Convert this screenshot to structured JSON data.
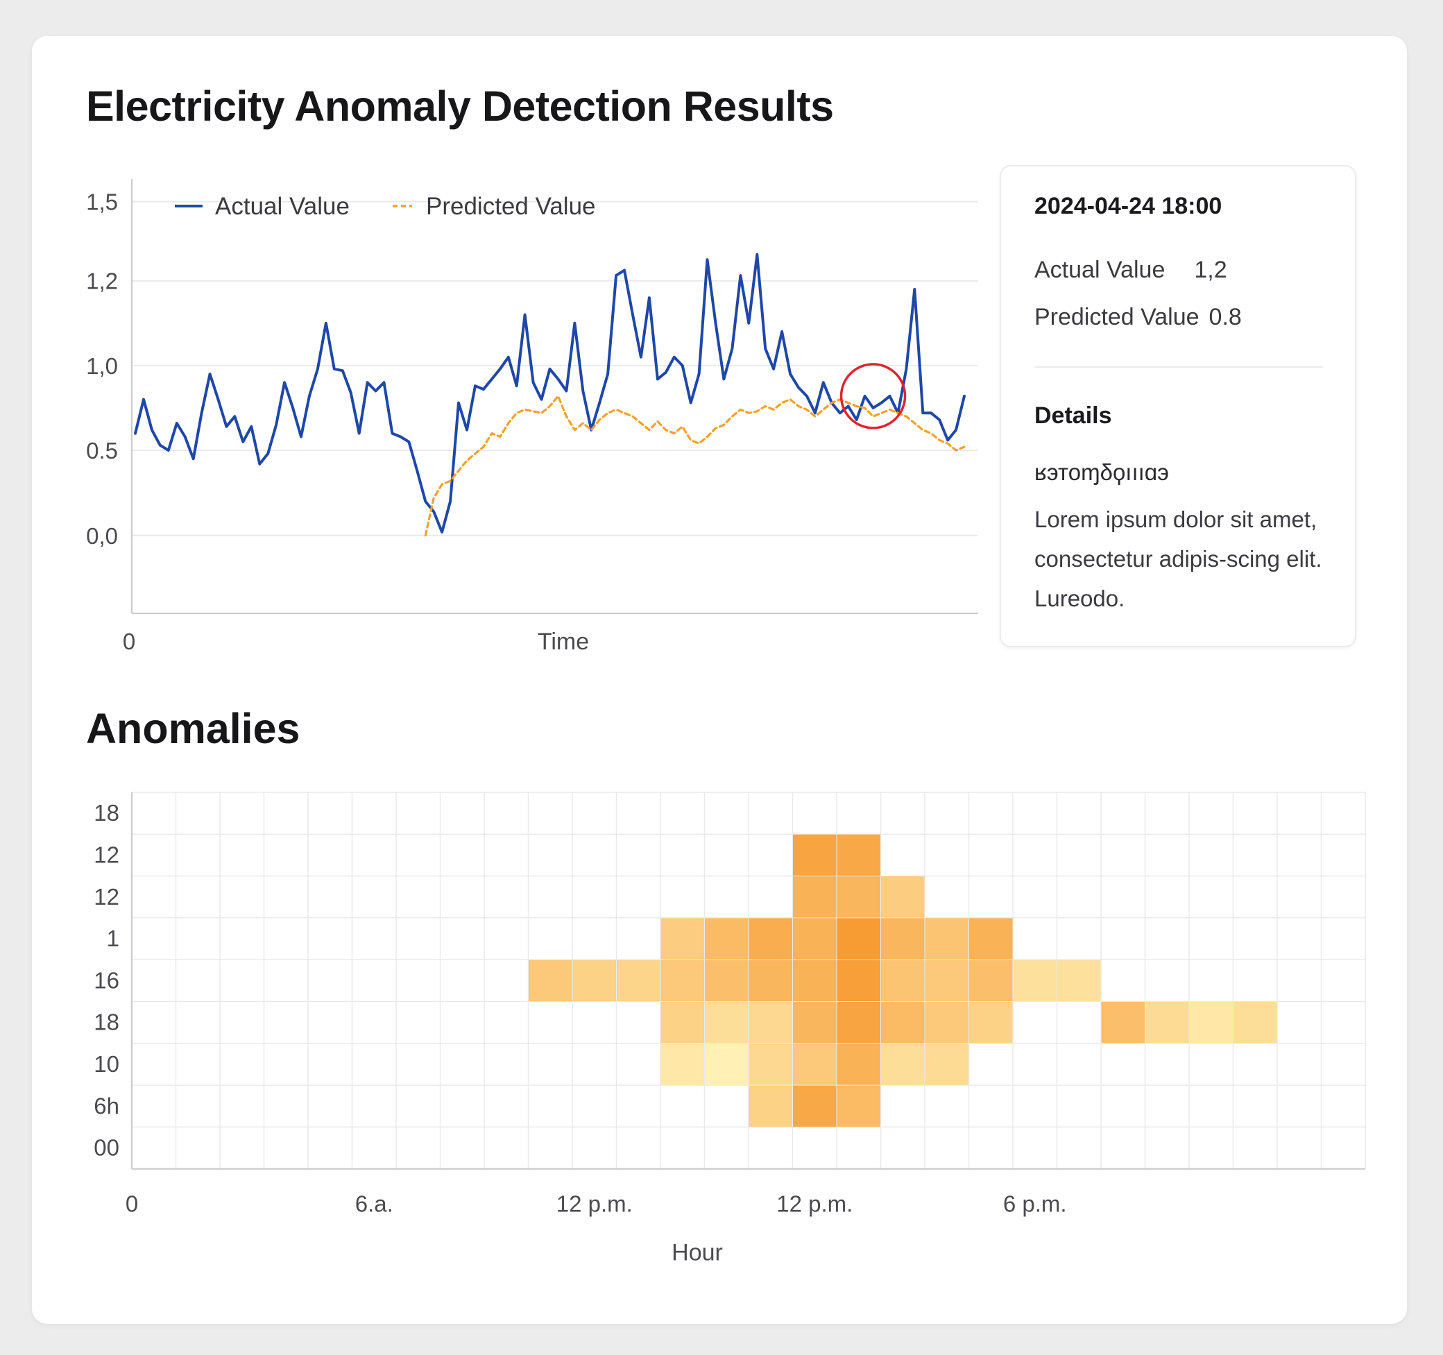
{
  "page": {
    "title": "Electricity Anomaly Detection Results",
    "anomalies_title": "Anomalies"
  },
  "colors": {
    "actual": "#1e47a8",
    "predicted": "#f6a02b",
    "anomaly_marker": "#e0242c",
    "grid": "#eaeaec",
    "axis": "#c9c9cc",
    "heat_low": "#fff2b8",
    "heat_high": "#f7962c"
  },
  "info_panel": {
    "timestamp": "2024-04-24 18:00",
    "actual_label": "Actual Value",
    "actual_value": "1,2",
    "predicted_label": "Predicted Value",
    "predicted_value": "0.8",
    "details_label": "Details",
    "details_code": "ʁэтоɱδϙıııɑэ",
    "details_text": "Lorem ipsum dolor sit amet, consectetur adipis-scing elit. Lureodo."
  },
  "chart_data": [
    {
      "type": "line",
      "title": "Electricity Anomaly Detection Results",
      "xlabel": "Time",
      "ylabel": "",
      "x_tick_labels": [
        "0"
      ],
      "y_ticks": [
        {
          "value": 1.5,
          "label": "1,5"
        },
        {
          "value": 1.2,
          "label": "1,2"
        },
        {
          "value": 1.0,
          "label": "1,0"
        },
        {
          "value": 0.5,
          "label": "0.5"
        },
        {
          "value": 0.0,
          "label": "0,0"
        }
      ],
      "y_positions": [
        {
          "value": -0.5,
          "pos": 0.0
        },
        {
          "value": 0.0,
          "pos": 0.181
        },
        {
          "value": 0.5,
          "pos": 0.379
        },
        {
          "value": 1.0,
          "pos": 0.576
        },
        {
          "value": 1.2,
          "pos": 0.773
        },
        {
          "value": 1.5,
          "pos": 0.957
        }
      ],
      "xlim": [
        0,
        100
      ],
      "legend": {
        "position": "top-left",
        "entries": [
          "Actual Value",
          "Predicted Value"
        ]
      },
      "series": [
        {
          "name": "Actual Value",
          "style": "solid",
          "x": [
            0,
            1,
            2,
            3,
            4,
            5,
            6,
            7,
            8,
            9,
            10,
            11,
            12,
            13,
            14,
            15,
            16,
            17,
            18,
            19,
            20,
            21,
            22,
            23,
            24,
            25,
            26,
            27,
            28,
            29,
            30,
            31,
            32,
            33,
            34,
            35,
            36,
            37,
            38,
            39,
            40,
            41,
            42,
            43,
            44,
            45,
            46,
            47,
            48,
            49,
            50,
            51,
            52,
            53,
            54,
            55,
            56,
            57,
            58,
            59,
            60,
            61,
            62,
            63,
            64,
            65,
            66,
            67,
            68,
            69,
            70,
            71,
            72,
            73,
            74,
            75,
            76,
            77,
            78,
            79,
            80,
            81,
            82,
            83,
            84,
            85,
            86,
            87,
            88,
            89,
            90,
            91,
            92,
            93,
            94,
            95,
            96,
            97,
            98,
            99,
            100
          ],
          "y": [
            0.6,
            0.8,
            0.62,
            0.53,
            0.5,
            0.66,
            0.58,
            0.45,
            0.72,
            0.95,
            0.8,
            0.64,
            0.7,
            0.55,
            0.64,
            0.42,
            0.48,
            0.65,
            0.9,
            0.75,
            0.58,
            0.82,
            0.98,
            1.1,
            0.98,
            0.97,
            0.84,
            0.6,
            0.9,
            0.85,
            0.9,
            0.6,
            0.58,
            0.55,
            0.38,
            0.2,
            0.14,
            0.02,
            0.2,
            0.78,
            0.62,
            0.88,
            0.86,
            0.92,
            0.98,
            1.02,
            0.88,
            1.12,
            0.9,
            0.8,
            0.98,
            0.92,
            0.85,
            1.1,
            0.85,
            0.62,
            0.78,
            0.95,
            1.22,
            1.24,
            1.12,
            1.02,
            1.16,
            0.92,
            0.96,
            1.02,
            1.0,
            0.78,
            0.95,
            1.28,
            1.1,
            0.92,
            1.04,
            1.22,
            1.1,
            1.3,
            1.04,
            0.98,
            1.08,
            0.95,
            0.87,
            0.82,
            0.72,
            0.9,
            0.78,
            0.72,
            0.76,
            0.68,
            0.82,
            0.75,
            0.78,
            0.82,
            0.72,
            0.98,
            1.18,
            0.72,
            0.72,
            0.68,
            0.56,
            0.62,
            0.82
          ]
        },
        {
          "name": "Predicted Value",
          "style": "dashed",
          "x": [
            35,
            36,
            37,
            38,
            39,
            40,
            41,
            42,
            43,
            44,
            45,
            46,
            47,
            48,
            49,
            50,
            51,
            52,
            53,
            54,
            55,
            56,
            57,
            58,
            59,
            60,
            61,
            62,
            63,
            64,
            65,
            66,
            67,
            68,
            69,
            70,
            71,
            72,
            73,
            74,
            75,
            76,
            77,
            78,
            79,
            80,
            81,
            82,
            83,
            84,
            85,
            86,
            87,
            88,
            89,
            90,
            91,
            92,
            93,
            94,
            95,
            96,
            97,
            98,
            99,
            100
          ],
          "y": [
            0.0,
            0.22,
            0.3,
            0.32,
            0.38,
            0.44,
            0.48,
            0.52,
            0.6,
            0.58,
            0.66,
            0.72,
            0.74,
            0.73,
            0.72,
            0.76,
            0.82,
            0.7,
            0.62,
            0.66,
            0.62,
            0.68,
            0.72,
            0.74,
            0.72,
            0.7,
            0.66,
            0.62,
            0.67,
            0.62,
            0.6,
            0.64,
            0.56,
            0.54,
            0.58,
            0.63,
            0.65,
            0.7,
            0.74,
            0.72,
            0.73,
            0.76,
            0.74,
            0.78,
            0.8,
            0.76,
            0.74,
            0.7,
            0.74,
            0.78,
            0.8,
            0.78,
            0.76,
            0.75,
            0.7,
            0.72,
            0.74,
            0.72,
            0.7,
            0.66,
            0.62,
            0.6,
            0.56,
            0.54,
            0.5,
            0.52
          ]
        }
      ],
      "annotations": [
        {
          "type": "anomaly-circle",
          "x": 89,
          "y": 0.82
        }
      ]
    },
    {
      "type": "heatmap",
      "title": "Anomalies",
      "xlabel": "Hour",
      "ylabel": "",
      "x_tick_labels": [
        "0",
        "6.a.",
        "12 p.m.",
        "12 p.m.",
        "6 p.m."
      ],
      "x_tick_columns": [
        0,
        5,
        10,
        15,
        20
      ],
      "y_tick_labels": [
        "18",
        "12",
        "12",
        "1",
        "16",
        "18",
        "10",
        "6h",
        "00"
      ],
      "columns": 28,
      "rows": 9,
      "cells": [
        {
          "col": 15,
          "row": 1,
          "value": 0.85
        },
        {
          "col": 16,
          "row": 1,
          "value": 0.8
        },
        {
          "col": 15,
          "row": 2,
          "value": 0.7
        },
        {
          "col": 16,
          "row": 2,
          "value": 0.65
        },
        {
          "col": 17,
          "row": 2,
          "value": 0.4
        },
        {
          "col": 12,
          "row": 3,
          "value": 0.4
        },
        {
          "col": 13,
          "row": 3,
          "value": 0.6
        },
        {
          "col": 14,
          "row": 3,
          "value": 0.75
        },
        {
          "col": 15,
          "row": 3,
          "value": 0.7
        },
        {
          "col": 16,
          "row": 3,
          "value": 0.95
        },
        {
          "col": 17,
          "row": 3,
          "value": 0.65
        },
        {
          "col": 18,
          "row": 3,
          "value": 0.5
        },
        {
          "col": 19,
          "row": 3,
          "value": 0.7
        },
        {
          "col": 9,
          "row": 4,
          "value": 0.45
        },
        {
          "col": 10,
          "row": 4,
          "value": 0.35
        },
        {
          "col": 11,
          "row": 4,
          "value": 0.32
        },
        {
          "col": 12,
          "row": 4,
          "value": 0.45
        },
        {
          "col": 13,
          "row": 4,
          "value": 0.55
        },
        {
          "col": 14,
          "row": 4,
          "value": 0.65
        },
        {
          "col": 15,
          "row": 4,
          "value": 0.7
        },
        {
          "col": 16,
          "row": 4,
          "value": 0.9
        },
        {
          "col": 17,
          "row": 4,
          "value": 0.5
        },
        {
          "col": 18,
          "row": 4,
          "value": 0.45
        },
        {
          "col": 19,
          "row": 4,
          "value": 0.55
        },
        {
          "col": 20,
          "row": 4,
          "value": 0.2
        },
        {
          "col": 21,
          "row": 4,
          "value": 0.2
        },
        {
          "col": 12,
          "row": 5,
          "value": 0.35
        },
        {
          "col": 13,
          "row": 5,
          "value": 0.22
        },
        {
          "col": 14,
          "row": 5,
          "value": 0.28
        },
        {
          "col": 15,
          "row": 5,
          "value": 0.65
        },
        {
          "col": 16,
          "row": 5,
          "value": 0.85
        },
        {
          "col": 17,
          "row": 5,
          "value": 0.6
        },
        {
          "col": 18,
          "row": 5,
          "value": 0.45
        },
        {
          "col": 19,
          "row": 5,
          "value": 0.35
        },
        {
          "col": 22,
          "row": 5,
          "value": 0.55
        },
        {
          "col": 23,
          "row": 5,
          "value": 0.25
        },
        {
          "col": 24,
          "row": 5,
          "value": 0.12
        },
        {
          "col": 25,
          "row": 5,
          "value": 0.22
        },
        {
          "col": 12,
          "row": 6,
          "value": 0.12
        },
        {
          "col": 13,
          "row": 6,
          "value": 0.02
        },
        {
          "col": 14,
          "row": 6,
          "value": 0.28
        },
        {
          "col": 15,
          "row": 6,
          "value": 0.45
        },
        {
          "col": 16,
          "row": 6,
          "value": 0.7
        },
        {
          "col": 17,
          "row": 6,
          "value": 0.22
        },
        {
          "col": 18,
          "row": 6,
          "value": 0.25
        },
        {
          "col": 14,
          "row": 7,
          "value": 0.35
        },
        {
          "col": 15,
          "row": 7,
          "value": 0.8
        },
        {
          "col": 16,
          "row": 7,
          "value": 0.6
        }
      ]
    }
  ]
}
